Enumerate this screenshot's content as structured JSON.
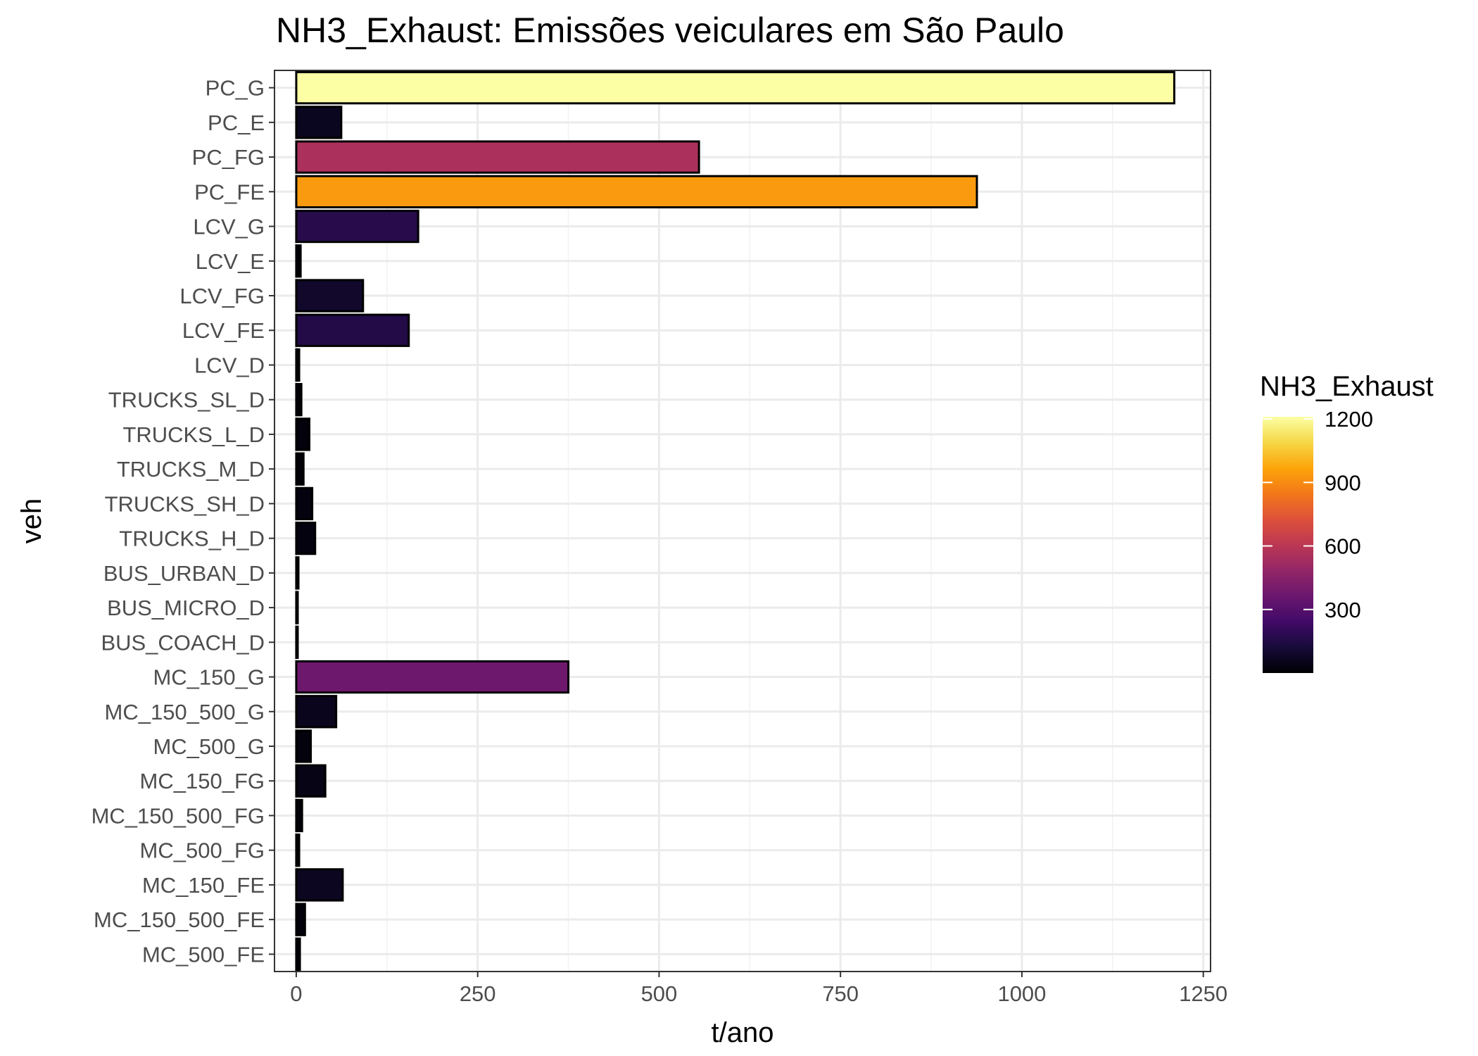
{
  "chart_data": {
    "type": "bar",
    "orientation": "horizontal",
    "title": "NH3_Exhaust: Emissões veiculares em São Paulo",
    "xlabel": "t/ano",
    "ylabel": "veh",
    "xlim": [
      -30,
      1260
    ],
    "xticks": [
      0,
      250,
      500,
      750,
      1000,
      1250
    ],
    "xtick_labels": [
      "0",
      "250",
      "500",
      "750",
      "1000",
      "1250"
    ],
    "grid": true,
    "legend_position": "right",
    "legend": {
      "title": "NH3_Exhaust",
      "type": "colorbar",
      "colormap": "inferno",
      "range": [
        0,
        1210
      ],
      "ticks": [
        300,
        600,
        900,
        1200
      ],
      "tick_labels": [
        "300",
        "600",
        "900",
        "1200"
      ]
    },
    "categories": [
      "PC_G",
      "PC_E",
      "PC_FG",
      "PC_FE",
      "LCV_G",
      "LCV_E",
      "LCV_FG",
      "LCV_FE",
      "LCV_D",
      "TRUCKS_SL_D",
      "TRUCKS_L_D",
      "TRUCKS_M_D",
      "TRUCKS_SH_D",
      "TRUCKS_H_D",
      "BUS_URBAN_D",
      "BUS_MICRO_D",
      "BUS_COACH_D",
      "MC_150_G",
      "MC_150_500_G",
      "MC_500_G",
      "MC_150_FG",
      "MC_150_500_FG",
      "MC_500_FG",
      "MC_150_FE",
      "MC_150_500_FE",
      "MC_500_FE"
    ],
    "values": [
      1210,
      62,
      555,
      938,
      168,
      6,
      92,
      155,
      4,
      7,
      18,
      10,
      22,
      26,
      3,
      2,
      2,
      375,
      55,
      20,
      40,
      8,
      4,
      64,
      12,
      5
    ]
  }
}
